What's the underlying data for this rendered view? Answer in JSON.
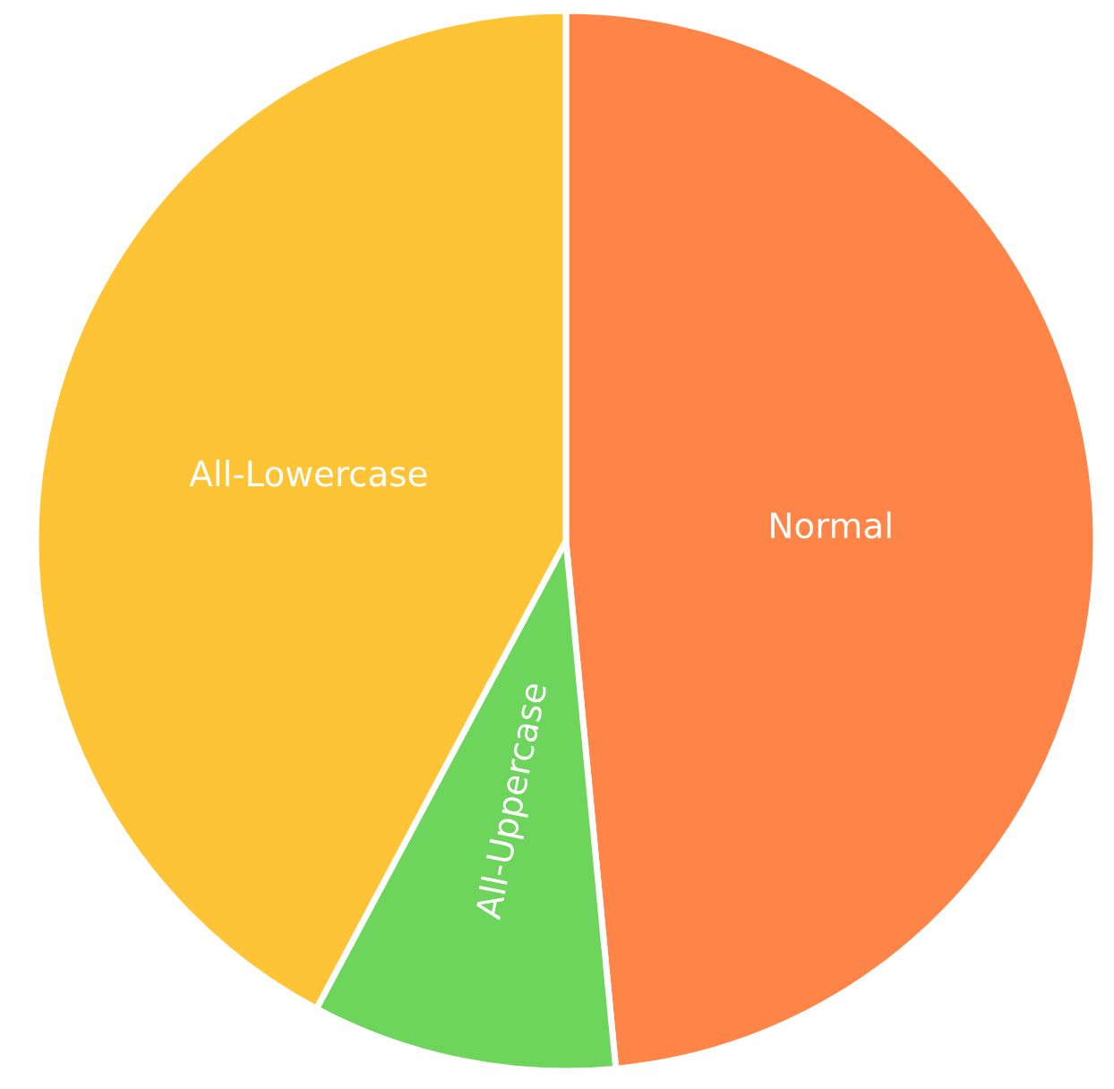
{
  "chart_data": {
    "type": "pie",
    "categories": [
      "Normal",
      "All-Uppercase",
      "All-Lowercase"
    ],
    "values": [
      48.5,
      9.3,
      42.2
    ],
    "colors": [
      "#ff8447",
      "#6dd45c",
      "#fec435"
    ]
  }
}
